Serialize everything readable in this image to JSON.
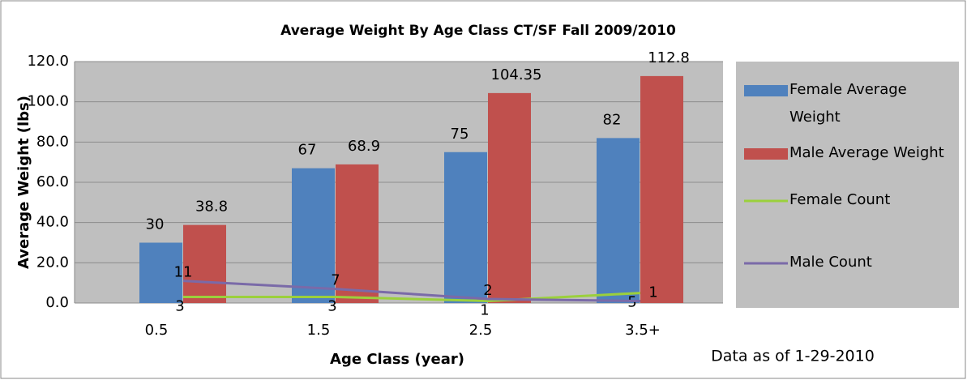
{
  "chart_data": {
    "type": "bar",
    "title": "Average Weight By Age Class CT/SF Fall 2009/2010",
    "xlabel": "Age Class (year)",
    "ylabel": "Average Weight (lbs)",
    "annotation": "Data as of 1-29-2010",
    "categories": [
      "0.5",
      "1.5",
      "2.5",
      "3.5+"
    ],
    "series": [
      {
        "name": "Female Average Weight",
        "type": "bar",
        "color": "#4f81bd",
        "values": [
          30,
          67,
          75,
          82
        ]
      },
      {
        "name": "Male Average Weight",
        "type": "bar",
        "color": "#c0504d",
        "values": [
          38.8,
          68.9,
          104.35,
          112.8
        ]
      },
      {
        "name": "Female Count",
        "type": "line",
        "color": "#9bd03c",
        "values": [
          3,
          3,
          1,
          5
        ]
      },
      {
        "name": "Male Count",
        "type": "line",
        "color": "#7a6aa8",
        "values": [
          11,
          7,
          2,
          1
        ]
      }
    ],
    "ylim": [
      0,
      120
    ],
    "yticks": [
      {
        "value": 0,
        "label": "0.0"
      },
      {
        "value": 20,
        "label": "20.0"
      },
      {
        "value": 40,
        "label": "40.0"
      },
      {
        "value": 60,
        "label": "60.0"
      },
      {
        "value": 80,
        "label": "80.0"
      },
      {
        "value": 100,
        "label": "100.0"
      },
      {
        "value": 120,
        "label": "120.0"
      }
    ],
    "grid": true,
    "legend": "right"
  }
}
